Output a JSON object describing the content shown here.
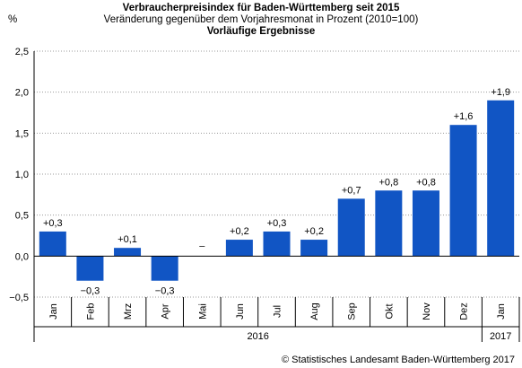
{
  "header": {
    "title": "Verbraucherpreisindex für Baden-Württemberg seit 2015",
    "subtitle": "Veränderung gegenüber dem Vorjahresmonat in Prozent (2010=100)",
    "note": "Vorläufige Ergebnisse",
    "unit": "%"
  },
  "footer": {
    "source": "© Statistisches Landesamt Baden-Württemberg 2017"
  },
  "chart_data": {
    "type": "bar",
    "title": "Verbraucherpreisindex für Baden-Württemberg seit 2015",
    "ylabel": "%",
    "categories": [
      "Jan",
      "Feb",
      "Mrz",
      "Apr",
      "Mai",
      "Jun",
      "Jul",
      "Aug",
      "Sep",
      "Okt",
      "Nov",
      "Dez",
      "Jan"
    ],
    "values": [
      0.3,
      -0.3,
      0.1,
      -0.3,
      0.0,
      0.2,
      0.3,
      0.2,
      0.7,
      0.8,
      0.8,
      1.6,
      1.9
    ],
    "value_labels": [
      "+0,3",
      "−0,3",
      "+0,1",
      "−0,3",
      "–",
      "+0,2",
      "+0,3",
      "+0,2",
      "+0,7",
      "+0,8",
      "+0,8",
      "+1,6",
      "+1,9"
    ],
    "year_groups": [
      {
        "label": "2016",
        "count": 12
      },
      {
        "label": "2017",
        "count": 1
      }
    ],
    "ylim": [
      -0.5,
      2.5
    ],
    "yticks": [
      -0.5,
      0.0,
      0.5,
      1.0,
      1.5,
      2.0,
      2.5
    ],
    "ytick_labels": [
      "−0,5",
      "0,0",
      "0,5",
      "1,0",
      "1,5",
      "2,0",
      "2,5"
    ],
    "bar_color": "#1155c4",
    "grid": "horizontal dotted",
    "legend": "none"
  }
}
